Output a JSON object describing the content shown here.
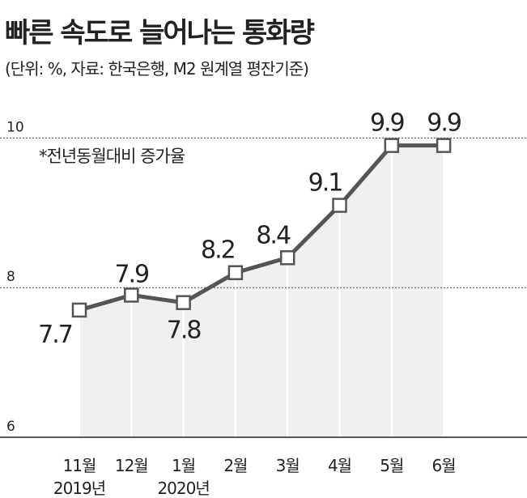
{
  "chart_data": {
    "type": "line",
    "title": "빠른 속도로 늘어나는 통화량",
    "subtitle": "(단위: %, 자료: 한국은행, M2 원계열 평잔기준)",
    "annotation": "*전년동월대비 증가율",
    "categories": [
      "11월",
      "12월",
      "1월",
      "2월",
      "3월",
      "4월",
      "5월",
      "6월"
    ],
    "year_labels": [
      "2019년",
      null,
      "2020년",
      null,
      null,
      null,
      null,
      null
    ],
    "values": [
      7.7,
      7.9,
      7.8,
      8.2,
      8.4,
      9.1,
      9.9,
      9.9
    ],
    "color": "#555555",
    "area_color": "#f0f0f0",
    "ylim": [
      6,
      10.6
    ],
    "yticks": [
      6,
      8,
      10
    ],
    "grid": true
  }
}
